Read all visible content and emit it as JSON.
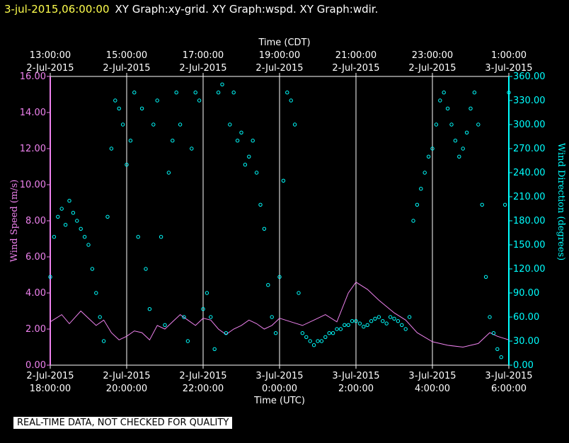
{
  "header": {
    "datetime": "3-jul-2015,06:00:00",
    "title": "XY Graph:xy-grid.  XY Graph:wspd.  XY Graph:wdir."
  },
  "footer": {
    "banner": "REAL-TIME DATA, NOT CHECKED FOR QUALITY"
  },
  "colors": {
    "speed": "#ee82ee",
    "direction": "#00ffff",
    "axis_left": "#ee82ee",
    "axis_right": "#00ffff",
    "text": "#ffffff",
    "time": "#ffff4d"
  },
  "chart_data": {
    "type": "scatter",
    "xlabel_top": "Time (CDT)",
    "xlabel_bottom": "Time (UTC)",
    "ylabel_left": "Wind Speed (m/s)",
    "ylabel_right": "Wind Direction (degrees)",
    "x_range_utc_hours": [
      18,
      30
    ],
    "ylim_left": [
      0,
      16
    ],
    "ylim_right": [
      0,
      360
    ],
    "grid": "vertical",
    "top_ticks": [
      {
        "t": "13:00:00",
        "d": "2-Jul-2015"
      },
      {
        "t": "15:00:00",
        "d": "2-Jul-2015"
      },
      {
        "t": "17:00:00",
        "d": "2-Jul-2015"
      },
      {
        "t": "19:00:00",
        "d": "2-Jul-2015"
      },
      {
        "t": "21:00:00",
        "d": "2-Jul-2015"
      },
      {
        "t": "23:00:00",
        "d": "2-Jul-2015"
      },
      {
        "t": "1:00:00",
        "d": "3-Jul-2015"
      }
    ],
    "bottom_ticks": [
      {
        "d": "2-Jul-2015",
        "t": "18:00:00"
      },
      {
        "d": "2-Jul-2015",
        "t": "20:00:00"
      },
      {
        "d": "2-Jul-2015",
        "t": "22:00:00"
      },
      {
        "d": "3-Jul-2015",
        "t": "0:00:00"
      },
      {
        "d": "3-Jul-2015",
        "t": "2:00:00"
      },
      {
        "d": "3-Jul-2015",
        "t": "4:00:00"
      },
      {
        "d": "3-Jul-2015",
        "t": "6:00:00"
      }
    ],
    "left_ticks": [
      "0.00",
      "2.00",
      "4.00",
      "6.00",
      "8.00",
      "10.00",
      "12.00",
      "14.00",
      "16.00"
    ],
    "right_ticks": [
      "0.00",
      "30.00",
      "60.00",
      "90.00",
      "120.00",
      "150.00",
      "180.00",
      "210.00",
      "240.00",
      "270.00",
      "300.00",
      "330.00",
      "360.00"
    ],
    "series": [
      {
        "label": "wspd",
        "style": "line",
        "x": [
          18.0,
          18.3,
          18.5,
          18.8,
          19.0,
          19.2,
          19.4,
          19.6,
          19.8,
          20.0,
          20.2,
          20.4,
          20.6,
          20.8,
          21.0,
          21.2,
          21.4,
          21.6,
          21.8,
          22.0,
          22.2,
          22.4,
          22.6,
          22.8,
          23.0,
          23.2,
          23.4,
          23.6,
          23.8,
          24.0,
          24.3,
          24.6,
          24.9,
          25.2,
          25.5,
          25.8,
          26.0,
          26.3,
          26.6,
          27.0,
          27.3,
          27.6,
          28.0,
          28.4,
          28.8,
          29.2,
          29.5,
          29.7,
          30.0
        ],
        "y": [
          2.4,
          2.8,
          2.3,
          3.0,
          2.6,
          2.2,
          2.5,
          1.8,
          1.4,
          1.6,
          1.9,
          1.8,
          1.4,
          2.2,
          2.0,
          2.4,
          2.8,
          2.5,
          2.2,
          2.6,
          2.5,
          2.0,
          1.7,
          2.0,
          2.2,
          2.5,
          2.3,
          2.0,
          2.2,
          2.6,
          2.4,
          2.2,
          2.5,
          2.8,
          2.4,
          4.0,
          4.6,
          4.2,
          3.6,
          2.9,
          2.5,
          1.8,
          1.3,
          1.1,
          1.0,
          1.2,
          1.8,
          1.6,
          1.4
        ]
      },
      {
        "label": "wdir",
        "style": "points",
        "x": [
          18.0,
          18.1,
          18.2,
          18.3,
          18.4,
          18.5,
          18.6,
          18.7,
          18.8,
          18.9,
          19.0,
          19.1,
          19.2,
          19.3,
          19.4,
          19.5,
          19.6,
          19.7,
          19.8,
          19.9,
          20.0,
          20.1,
          20.2,
          20.3,
          20.4,
          20.5,
          20.6,
          20.7,
          20.8,
          20.9,
          21.0,
          21.1,
          21.2,
          21.3,
          21.4,
          21.5,
          21.6,
          21.7,
          21.8,
          21.9,
          22.0,
          22.1,
          22.2,
          22.3,
          22.4,
          22.5,
          22.6,
          22.7,
          22.8,
          22.9,
          23.0,
          23.1,
          23.2,
          23.3,
          23.4,
          23.5,
          23.6,
          23.7,
          23.8,
          23.9,
          24.0,
          24.1,
          24.2,
          24.3,
          24.4,
          24.5,
          24.6,
          24.7,
          24.8,
          24.9,
          25.0,
          25.1,
          25.2,
          25.3,
          25.4,
          25.5,
          25.6,
          25.7,
          25.8,
          25.9,
          26.0,
          26.1,
          26.2,
          26.3,
          26.4,
          26.5,
          26.6,
          26.7,
          26.8,
          26.9,
          27.0,
          27.1,
          27.2,
          27.3,
          27.4,
          27.5,
          27.6,
          27.7,
          27.8,
          27.9,
          28.0,
          28.1,
          28.2,
          28.3,
          28.4,
          28.5,
          28.6,
          28.7,
          28.8,
          28.9,
          29.0,
          29.1,
          29.2,
          29.3,
          29.4,
          29.5,
          29.6,
          29.7,
          29.8,
          29.9,
          30.0
        ],
        "y": [
          110,
          160,
          185,
          195,
          175,
          205,
          190,
          180,
          170,
          160,
          150,
          120,
          90,
          60,
          30,
          185,
          270,
          330,
          320,
          300,
          250,
          280,
          340,
          160,
          320,
          120,
          70,
          300,
          330,
          160,
          50,
          240,
          280,
          340,
          300,
          60,
          30,
          270,
          340,
          330,
          70,
          90,
          60,
          20,
          340,
          350,
          40,
          300,
          340,
          280,
          290,
          250,
          260,
          280,
          240,
          200,
          170,
          100,
          60,
          40,
          110,
          230,
          340,
          330,
          300,
          90,
          40,
          35,
          30,
          25,
          30,
          30,
          35,
          40,
          40,
          45,
          45,
          50,
          50,
          55,
          55,
          52,
          48,
          50,
          55,
          58,
          60,
          55,
          52,
          60,
          58,
          55,
          50,
          45,
          60,
          180,
          200,
          220,
          240,
          260,
          270,
          300,
          330,
          340,
          320,
          300,
          280,
          260,
          270,
          290,
          320,
          340,
          300,
          200,
          110,
          60,
          40,
          20,
          10,
          200,
          340
        ]
      }
    ]
  }
}
